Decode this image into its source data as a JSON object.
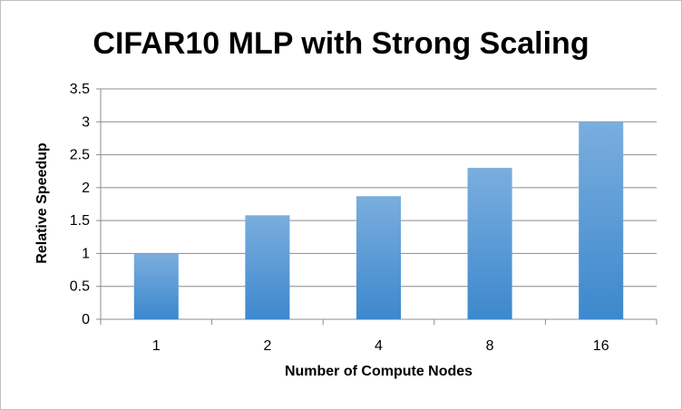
{
  "chart_data": {
    "type": "bar",
    "title": "CIFAR10 MLP with Strong Scaling",
    "xlabel": "Number of Compute Nodes",
    "ylabel": "Relative Speedup",
    "categories": [
      "1",
      "2",
      "4",
      "8",
      "16"
    ],
    "values": [
      1.0,
      1.58,
      1.87,
      2.3,
      3.0
    ],
    "ylim": [
      0,
      3.5
    ],
    "yticks": [
      "0",
      "0.5",
      "1",
      "1.5",
      "2",
      "2.5",
      "3",
      "3.5"
    ],
    "grid": true,
    "legend": "none",
    "colors": {
      "bar_top": "#7aaede",
      "bar_bottom": "#3d88cd",
      "grid": "#8c8c8c",
      "axis": "#8c8c8c"
    }
  }
}
